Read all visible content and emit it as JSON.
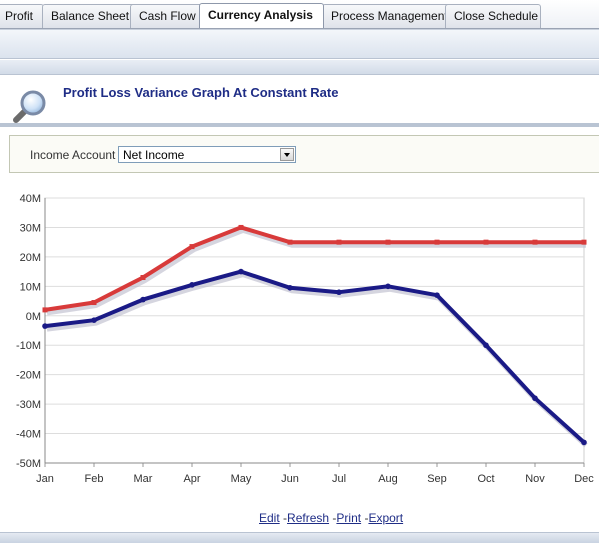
{
  "tabs": [
    {
      "label": "Profit",
      "active": false
    },
    {
      "label": "Balance Sheet",
      "active": false
    },
    {
      "label": "Cash Flow",
      "active": false
    },
    {
      "label": "Currency Analysis",
      "active": true
    },
    {
      "label": "Process Management",
      "active": false
    },
    {
      "label": "Close Schedule",
      "active": false
    }
  ],
  "header": {
    "title": "Profit Loss Variance Graph At Constant Rate",
    "icon": "magnifier-icon"
  },
  "filter": {
    "label": "Income Account",
    "selected": "Net Income"
  },
  "chart_data": {
    "type": "line",
    "categories": [
      "Jan",
      "Feb",
      "Mar",
      "Apr",
      "May",
      "Jun",
      "Jul",
      "Aug",
      "Sep",
      "Oct",
      "Nov",
      "Dec"
    ],
    "ylim": [
      -50,
      40
    ],
    "yticks": [
      "40M",
      "30M",
      "20M",
      "10M",
      "0M",
      "-10M",
      "-20M",
      "-30M",
      "-40M",
      "-50M"
    ],
    "ytick_values": [
      40,
      30,
      20,
      10,
      0,
      -10,
      -20,
      -30,
      -40,
      -50
    ],
    "grid": true,
    "series": [
      {
        "values": [
          2,
          4.5,
          13,
          23.5,
          30,
          25,
          25,
          25,
          25,
          25,
          25,
          25
        ],
        "color": "#d83a3a"
      },
      {
        "values": [
          -3.5,
          -1.5,
          5.5,
          10.5,
          15,
          9.5,
          8,
          10,
          7,
          -10,
          -28,
          -43
        ],
        "color": "#1a1a86"
      }
    ]
  },
  "footer": {
    "links": [
      "Edit",
      "Refresh",
      "Print",
      "Export"
    ],
    "separator": "-"
  }
}
